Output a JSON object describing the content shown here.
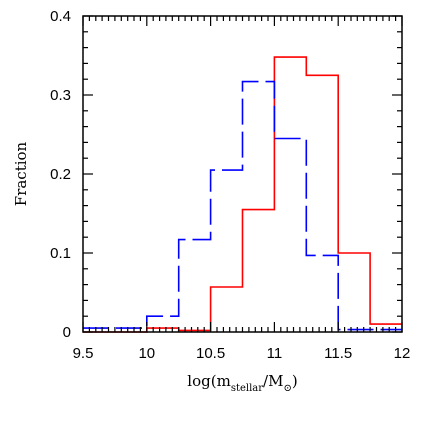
{
  "chart_data": {
    "type": "histogram",
    "title": "",
    "xlabel": {
      "prefix": "log(m",
      "subscript": "stellar",
      "middle": "/M",
      "solar_symbol": "⊙",
      "suffix": ")"
    },
    "ylabel": "Fraction",
    "xlim": [
      9.5,
      12
    ],
    "ylim": [
      0,
      0.4
    ],
    "xticks": [
      "9.5",
      "10",
      "10.5",
      "11",
      "11.5",
      "12"
    ],
    "yticks": [
      "0",
      "0.1",
      "0.2",
      "0.3",
      "0.4"
    ],
    "bin_edges": [
      9.5,
      9.75,
      10.0,
      10.25,
      10.5,
      10.75,
      11.0,
      11.25,
      11.5,
      11.75,
      12.0
    ],
    "series": [
      {
        "color": "#ff0000",
        "style": "solid",
        "values": [
          0.0,
          0.0,
          0.005,
          0.002,
          0.057,
          0.155,
          0.348,
          0.325,
          0.1,
          0.01
        ]
      },
      {
        "color": "#0000ff",
        "style": "dashed",
        "values": [
          0.005,
          0.005,
          0.02,
          0.117,
          0.205,
          0.317,
          0.245,
          0.097,
          0.003,
          0.003
        ]
      }
    ],
    "grid": false,
    "legend": "none"
  }
}
